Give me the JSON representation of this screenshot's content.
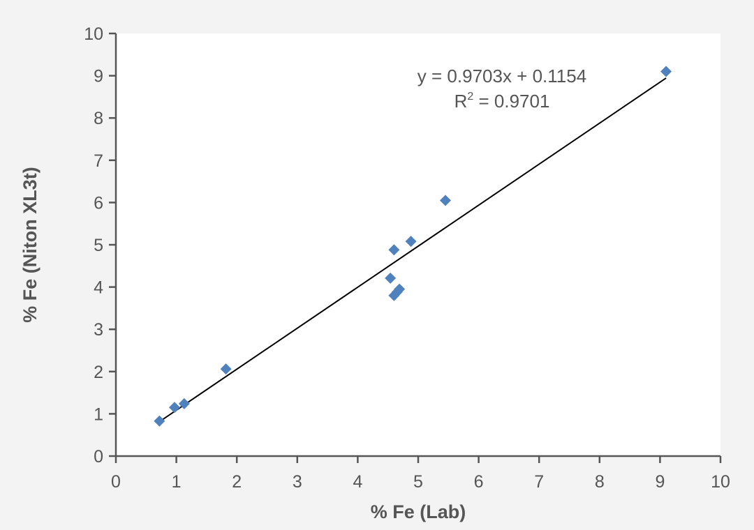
{
  "chart_data": {
    "type": "scatter",
    "title": "",
    "xlabel": "% Fe (Lab)",
    "ylabel": "% Fe (Niton XL3t)",
    "xlim": [
      0,
      10
    ],
    "ylim": [
      0,
      10
    ],
    "x_ticks": [
      "0",
      "1",
      "2",
      "3",
      "4",
      "5",
      "6",
      "7",
      "8",
      "9",
      "10"
    ],
    "y_ticks": [
      "0",
      "1",
      "2",
      "3",
      "4",
      "5",
      "6",
      "7",
      "8",
      "9",
      "10"
    ],
    "grid": false,
    "legend": "none",
    "series": [
      {
        "marker": "diamond",
        "color": "#4f81bd",
        "points": [
          {
            "x": 0.72,
            "y": 0.83
          },
          {
            "x": 0.97,
            "y": 1.15
          },
          {
            "x": 1.13,
            "y": 1.24
          },
          {
            "x": 1.82,
            "y": 2.06
          },
          {
            "x": 4.54,
            "y": 4.21
          },
          {
            "x": 4.6,
            "y": 3.8
          },
          {
            "x": 4.65,
            "y": 3.88
          },
          {
            "x": 4.69,
            "y": 3.95
          },
          {
            "x": 4.6,
            "y": 4.88
          },
          {
            "x": 4.88,
            "y": 5.08
          },
          {
            "x": 5.45,
            "y": 6.05
          },
          {
            "x": 9.1,
            "y": 9.1
          }
        ]
      }
    ],
    "trendline": {
      "slope": 0.9703,
      "intercept": 0.1154,
      "x_range": [
        0.72,
        9.1
      ],
      "color": "#000000"
    },
    "annotations": {
      "equation": "y = 0.9703x + 0.1154",
      "r2_prefix": "R",
      "r2_sup": "2",
      "r2_suffix": " = 0.9701"
    }
  }
}
